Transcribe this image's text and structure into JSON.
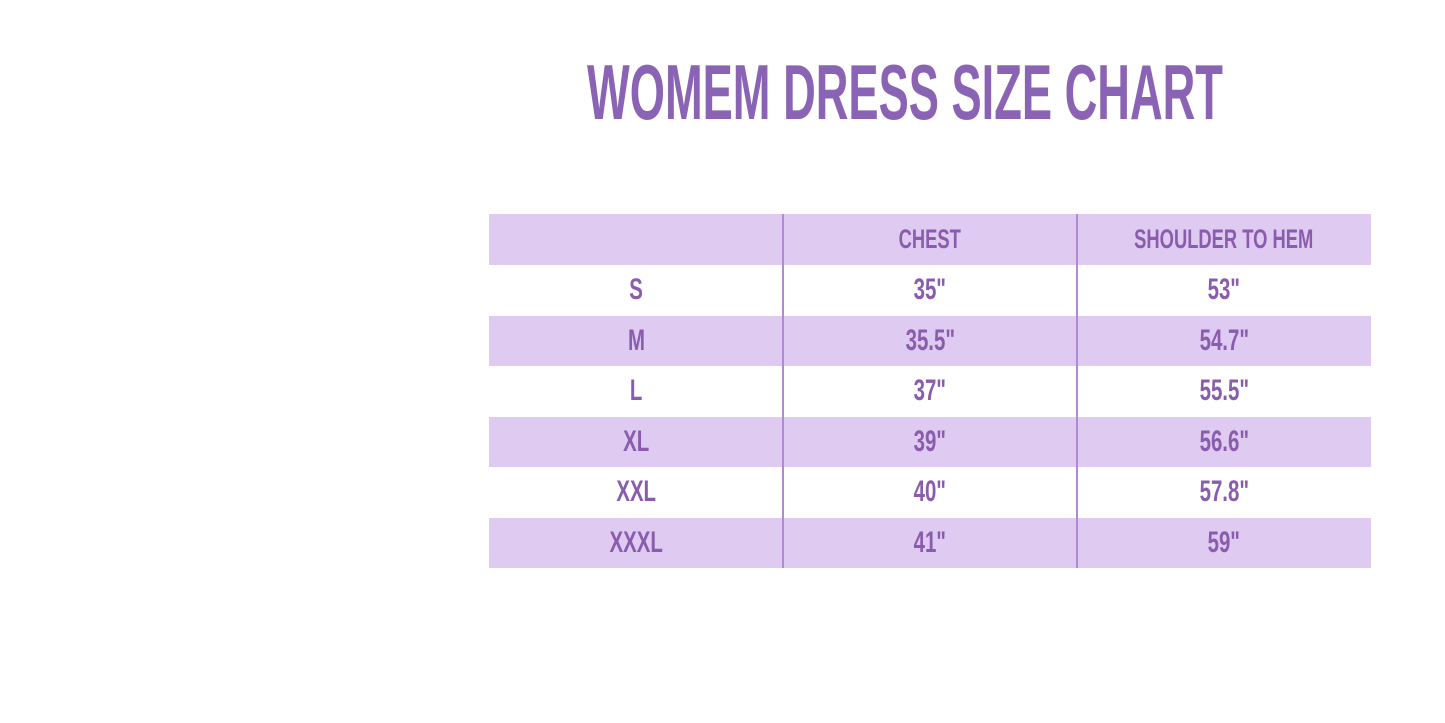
{
  "title": "WOMEM DRESS SIZE CHART",
  "table": {
    "columns": [
      "",
      "CHEST",
      "SHOULDER TO HEM"
    ],
    "rows": [
      {
        "size": "S",
        "chest": "35\"",
        "shoulder_to_hem": "53\""
      },
      {
        "size": "M",
        "chest": "35.5\"",
        "shoulder_to_hem": "54.7\""
      },
      {
        "size": "L",
        "chest": "37\"",
        "shoulder_to_hem": "55.5\""
      },
      {
        "size": "XL",
        "chest": "39\"",
        "shoulder_to_hem": "56.6\""
      },
      {
        "size": "XXL",
        "chest": "40\"",
        "shoulder_to_hem": "57.8\""
      },
      {
        "size": "XXXL",
        "chest": "41\"",
        "shoulder_to_hem": "59\""
      }
    ]
  },
  "colors": {
    "title_text": "#8B63B5",
    "table_text": "#8A5CAE",
    "row_highlight": "#DFCAF1",
    "row_plain": "#FFFFFF",
    "column_divider": "#B18AD6",
    "page_background": "#FFFFFF"
  },
  "chart_data": {
    "type": "table",
    "title": "WOMEM DRESS SIZE CHART",
    "columns": [
      "",
      "CHEST",
      "SHOULDER TO HEM"
    ],
    "rows": [
      [
        "S",
        "35\"",
        "53\""
      ],
      [
        "M",
        "35.5\"",
        "54.7\""
      ],
      [
        "L",
        "37\"",
        "55.5\""
      ],
      [
        "XL",
        "39\"",
        "56.6\""
      ],
      [
        "XXL",
        "40\"",
        "57.8\""
      ],
      [
        "XXXL",
        "41\"",
        "59\""
      ]
    ],
    "layout": {
      "header_background": "#DFCAF1",
      "alternating_rows": true,
      "highlighted_rows": [
        "header",
        "M",
        "XL",
        "XXXL"
      ],
      "grid": "vertical-dividers-only"
    }
  }
}
